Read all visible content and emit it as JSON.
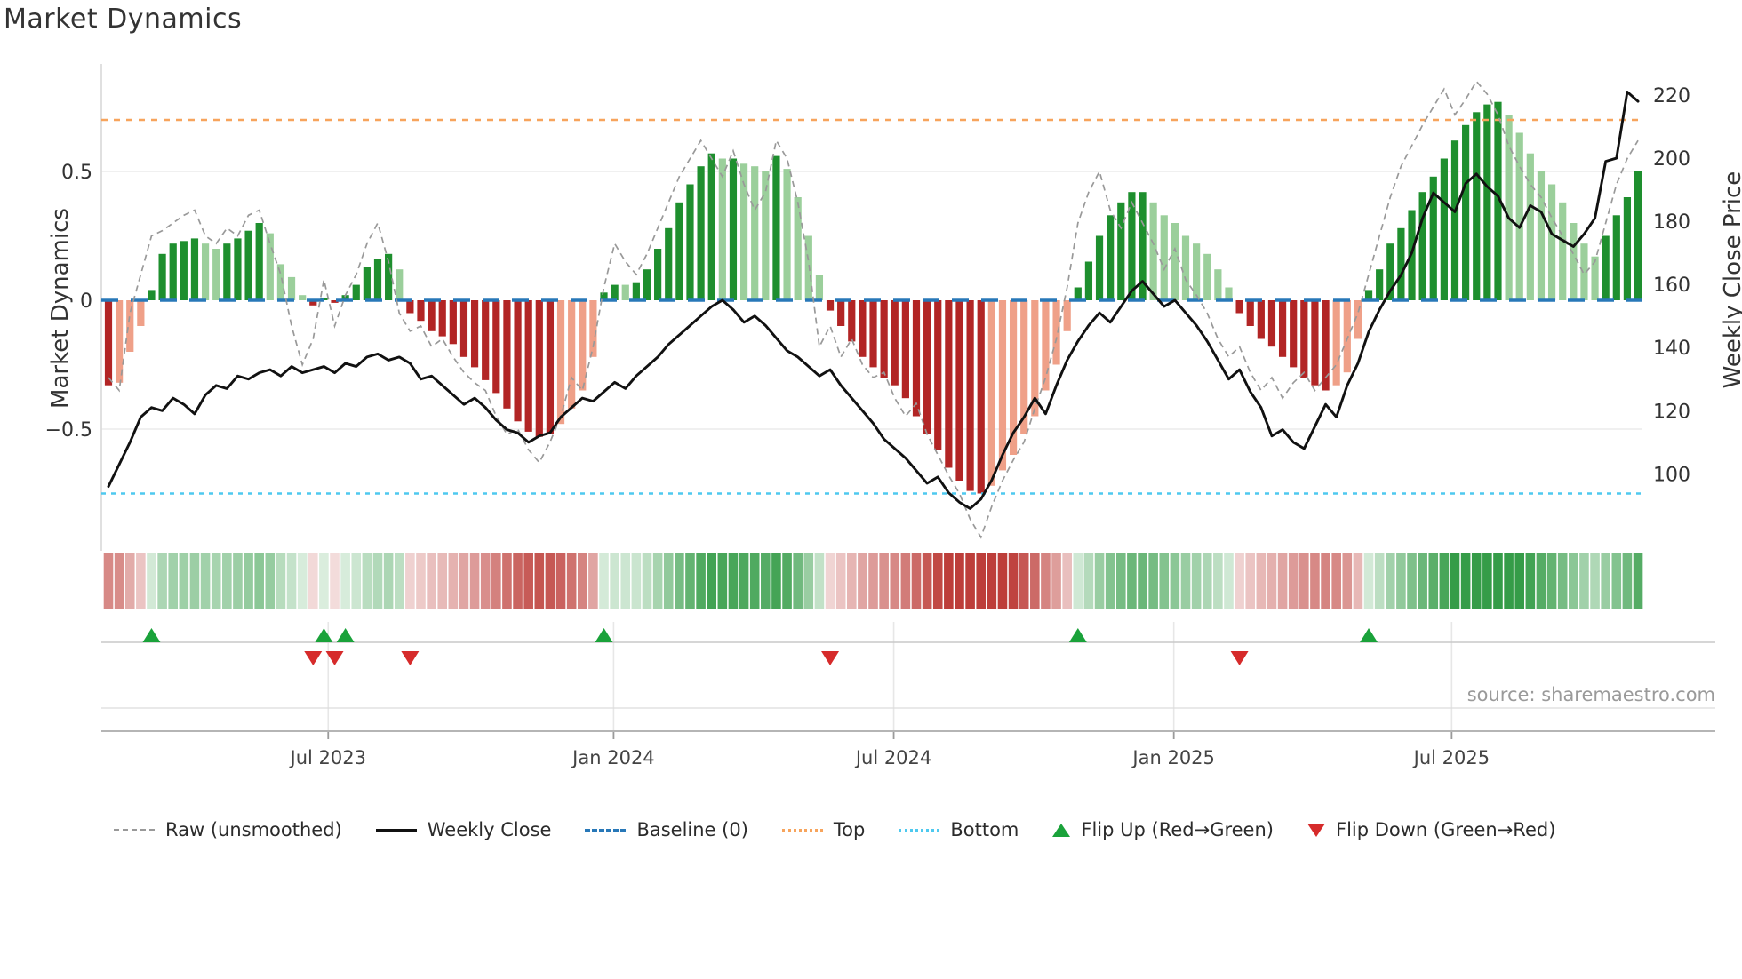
{
  "title": "Market Dynamics",
  "source_text": "source: sharemaestro.com",
  "axes": {
    "left_label": "Market Dynamics",
    "right_label": "Weekly Close Price",
    "left_ticks": [
      "0.5",
      "0",
      "−0.5"
    ],
    "left_tick_values": [
      0.5,
      0,
      -0.5
    ],
    "right_ticks": [
      "220",
      "200",
      "180",
      "160",
      "140",
      "120",
      "100"
    ],
    "right_tick_values": [
      220,
      200,
      180,
      160,
      140,
      120,
      100
    ],
    "x_ticks": [
      "Jul 2023",
      "Jan 2024",
      "Jul 2024",
      "Jan 2025",
      "Jul 2025"
    ],
    "x_tick_weeks": [
      20.4,
      46.9,
      72.9,
      98.9,
      124.7
    ]
  },
  "legend": [
    {
      "key": "raw",
      "label": "Raw (unsmoothed)"
    },
    {
      "key": "close",
      "label": "Weekly Close"
    },
    {
      "key": "baseline",
      "label": "Baseline (0)"
    },
    {
      "key": "top",
      "label": "Top"
    },
    {
      "key": "bottom",
      "label": "Bottom"
    },
    {
      "key": "flip_up",
      "label": "Flip Up (Red→Green)"
    },
    {
      "key": "flip_down",
      "label": "Flip Down (Green→Red)"
    }
  ],
  "colors": {
    "dark_green": "#1e8f2e",
    "light_green": "#9bcf9b",
    "dark_red": "#b22525",
    "light_red": "#efa088",
    "baseline_blue": "#2878b8",
    "top_orange": "#f7a45c",
    "bottom_cyan": "#4ec9ef",
    "raw_gray": "#999999",
    "price_black": "#111111",
    "flip_green": "#1aa23a",
    "flip_red": "#d62b2b",
    "heat_green": [
      40,
      150,
      60
    ],
    "heat_red": [
      185,
      50,
      45
    ]
  },
  "chart_data": {
    "type": "combo-bar-line",
    "freq": "weekly",
    "n_weeks": 143,
    "title": "Market Dynamics",
    "ylabel_left": "Market Dynamics",
    "ylabel_right": "Weekly Close Price",
    "ylim_left": [
      -0.95,
      0.95
    ],
    "ylim_right": [
      85,
      225
    ],
    "baseline": 0,
    "top_threshold": 0.7,
    "bottom_threshold": -0.75,
    "oscillator": [
      -0.33,
      -0.32,
      -0.2,
      -0.1,
      0.04,
      0.18,
      0.22,
      0.23,
      0.24,
      0.22,
      0.2,
      0.22,
      0.24,
      0.27,
      0.3,
      0.26,
      0.14,
      0.09,
      0.02,
      -0.02,
      0.01,
      -0.01,
      0.02,
      0.06,
      0.13,
      0.16,
      0.18,
      0.12,
      -0.05,
      -0.08,
      -0.12,
      -0.14,
      -0.17,
      -0.22,
      -0.26,
      -0.31,
      -0.36,
      -0.42,
      -0.47,
      -0.51,
      -0.53,
      -0.52,
      -0.48,
      -0.42,
      -0.35,
      -0.22,
      0.03,
      0.06,
      0.06,
      0.07,
      0.12,
      0.2,
      0.28,
      0.38,
      0.45,
      0.52,
      0.57,
      0.55,
      0.55,
      0.53,
      0.52,
      0.5,
      0.56,
      0.51,
      0.4,
      0.25,
      0.1,
      -0.04,
      -0.1,
      -0.16,
      -0.22,
      -0.26,
      -0.3,
      -0.33,
      -0.38,
      -0.45,
      -0.52,
      -0.58,
      -0.65,
      -0.7,
      -0.74,
      -0.75,
      -0.72,
      -0.66,
      -0.6,
      -0.52,
      -0.45,
      -0.35,
      -0.25,
      -0.12,
      0.05,
      0.15,
      0.25,
      0.33,
      0.38,
      0.42,
      0.42,
      0.38,
      0.33,
      0.3,
      0.25,
      0.22,
      0.18,
      0.12,
      0.05,
      -0.05,
      -0.1,
      -0.15,
      -0.18,
      -0.22,
      -0.26,
      -0.3,
      -0.33,
      -0.35,
      -0.33,
      -0.28,
      -0.15,
      0.04,
      0.12,
      0.22,
      0.28,
      0.35,
      0.42,
      0.48,
      0.55,
      0.62,
      0.68,
      0.73,
      0.76,
      0.77,
      0.72,
      0.65,
      0.57,
      0.5,
      0.45,
      0.38,
      0.3,
      0.22,
      0.17,
      0.25,
      0.33,
      0.4,
      0.5
    ],
    "bar_shade": [
      "dr",
      "lr",
      "lr",
      "lr",
      "dg",
      "dg",
      "dg",
      "dg",
      "dg",
      "lg",
      "lg",
      "dg",
      "dg",
      "dg",
      "dg",
      "lg",
      "lg",
      "lg",
      "lg",
      "dr",
      "dg",
      "dr",
      "dg",
      "dg",
      "dg",
      "dg",
      "dg",
      "lg",
      "dr",
      "dr",
      "dr",
      "dr",
      "dr",
      "dr",
      "dr",
      "dr",
      "dr",
      "dr",
      "dr",
      "dr",
      "dr",
      "dr",
      "lr",
      "lr",
      "lr",
      "lr",
      "dg",
      "dg",
      "lg",
      "dg",
      "dg",
      "dg",
      "dg",
      "dg",
      "dg",
      "dg",
      "dg",
      "lg",
      "dg",
      "lg",
      "lg",
      "lg",
      "dg",
      "lg",
      "lg",
      "lg",
      "lg",
      "dr",
      "dr",
      "dr",
      "dr",
      "dr",
      "dr",
      "dr",
      "dr",
      "dr",
      "dr",
      "dr",
      "dr",
      "dr",
      "dr",
      "dr",
      "lr",
      "lr",
      "lr",
      "lr",
      "lr",
      "lr",
      "lr",
      "lr",
      "dg",
      "dg",
      "dg",
      "dg",
      "dg",
      "dg",
      "dg",
      "lg",
      "lg",
      "lg",
      "lg",
      "lg",
      "lg",
      "lg",
      "lg",
      "dr",
      "dr",
      "dr",
      "dr",
      "dr",
      "dr",
      "dr",
      "dr",
      "dr",
      "lr",
      "lr",
      "lr",
      "dg",
      "dg",
      "dg",
      "dg",
      "dg",
      "dg",
      "dg",
      "dg",
      "dg",
      "dg",
      "dg",
      "dg",
      "dg",
      "lg",
      "lg",
      "lg",
      "lg",
      "lg",
      "lg",
      "lg",
      "lg",
      "lg",
      "dg",
      "dg",
      "dg",
      "dg"
    ],
    "raw": [
      -0.3,
      -0.35,
      -0.05,
      0.1,
      0.25,
      0.27,
      0.3,
      0.33,
      0.35,
      0.25,
      0.22,
      0.28,
      0.25,
      0.33,
      0.35,
      0.22,
      0.1,
      -0.1,
      -0.25,
      -0.15,
      0.08,
      -0.1,
      0.02,
      0.1,
      0.22,
      0.3,
      0.15,
      -0.05,
      -0.12,
      -0.1,
      -0.18,
      -0.15,
      -0.22,
      -0.28,
      -0.32,
      -0.35,
      -0.45,
      -0.52,
      -0.5,
      -0.58,
      -0.63,
      -0.55,
      -0.45,
      -0.3,
      -0.35,
      -0.18,
      0.05,
      0.22,
      0.15,
      0.1,
      0.18,
      0.28,
      0.38,
      0.48,
      0.55,
      0.62,
      0.55,
      0.48,
      0.58,
      0.45,
      0.35,
      0.42,
      0.62,
      0.55,
      0.38,
      0.15,
      -0.18,
      -0.1,
      -0.22,
      -0.15,
      -0.25,
      -0.3,
      -0.28,
      -0.38,
      -0.45,
      -0.4,
      -0.52,
      -0.6,
      -0.68,
      -0.75,
      -0.85,
      -0.92,
      -0.8,
      -0.7,
      -0.62,
      -0.55,
      -0.42,
      -0.3,
      -0.15,
      0.05,
      0.3,
      0.42,
      0.5,
      0.35,
      0.28,
      0.38,
      0.3,
      0.22,
      0.12,
      0.2,
      0.08,
      0.02,
      -0.05,
      -0.15,
      -0.22,
      -0.18,
      -0.28,
      -0.35,
      -0.3,
      -0.38,
      -0.32,
      -0.28,
      -0.35,
      -0.3,
      -0.25,
      -0.15,
      -0.05,
      0.1,
      0.25,
      0.4,
      0.52,
      0.6,
      0.68,
      0.75,
      0.82,
      0.72,
      0.78,
      0.85,
      0.8,
      0.72,
      0.6,
      0.52,
      0.45,
      0.4,
      0.32,
      0.25,
      0.18,
      0.1,
      0.15,
      0.3,
      0.45,
      0.55,
      0.62
    ],
    "price": [
      96,
      103,
      110,
      118,
      121,
      120,
      124,
      122,
      119,
      125,
      128,
      127,
      131,
      130,
      132,
      133,
      131,
      134,
      132,
      133,
      134,
      132,
      135,
      134,
      137,
      138,
      136,
      137,
      135,
      130,
      131,
      128,
      125,
      122,
      124,
      121,
      117,
      114,
      113,
      110,
      112,
      113,
      118,
      121,
      124,
      123,
      126,
      129,
      127,
      131,
      134,
      137,
      141,
      144,
      147,
      150,
      153,
      155,
      152,
      148,
      150,
      147,
      143,
      139,
      137,
      134,
      131,
      133,
      128,
      124,
      120,
      116,
      111,
      108,
      105,
      101,
      97,
      99,
      94,
      91,
      89,
      92,
      98,
      106,
      113,
      118,
      124,
      119,
      128,
      136,
      142,
      147,
      151,
      148,
      153,
      158,
      161,
      157,
      153,
      155,
      151,
      147,
      142,
      136,
      130,
      133,
      126,
      121,
      112,
      114,
      110,
      108,
      115,
      122,
      118,
      128,
      135,
      145,
      152,
      158,
      163,
      170,
      181,
      189,
      186,
      183,
      192,
      195,
      191,
      188,
      181,
      178,
      185,
      183,
      176,
      174,
      172,
      176,
      181,
      199,
      200,
      221,
      218
    ],
    "flip_up_weeks": [
      4,
      20,
      22,
      46,
      90,
      117
    ],
    "flip_down_weeks": [
      19,
      21,
      28,
      67,
      105
    ],
    "heatmap": "derived-from-oscillator",
    "legend_position": "bottom",
    "grid": "light horizontal at ±0.5, vertical at half-year ticks in lower bands"
  }
}
